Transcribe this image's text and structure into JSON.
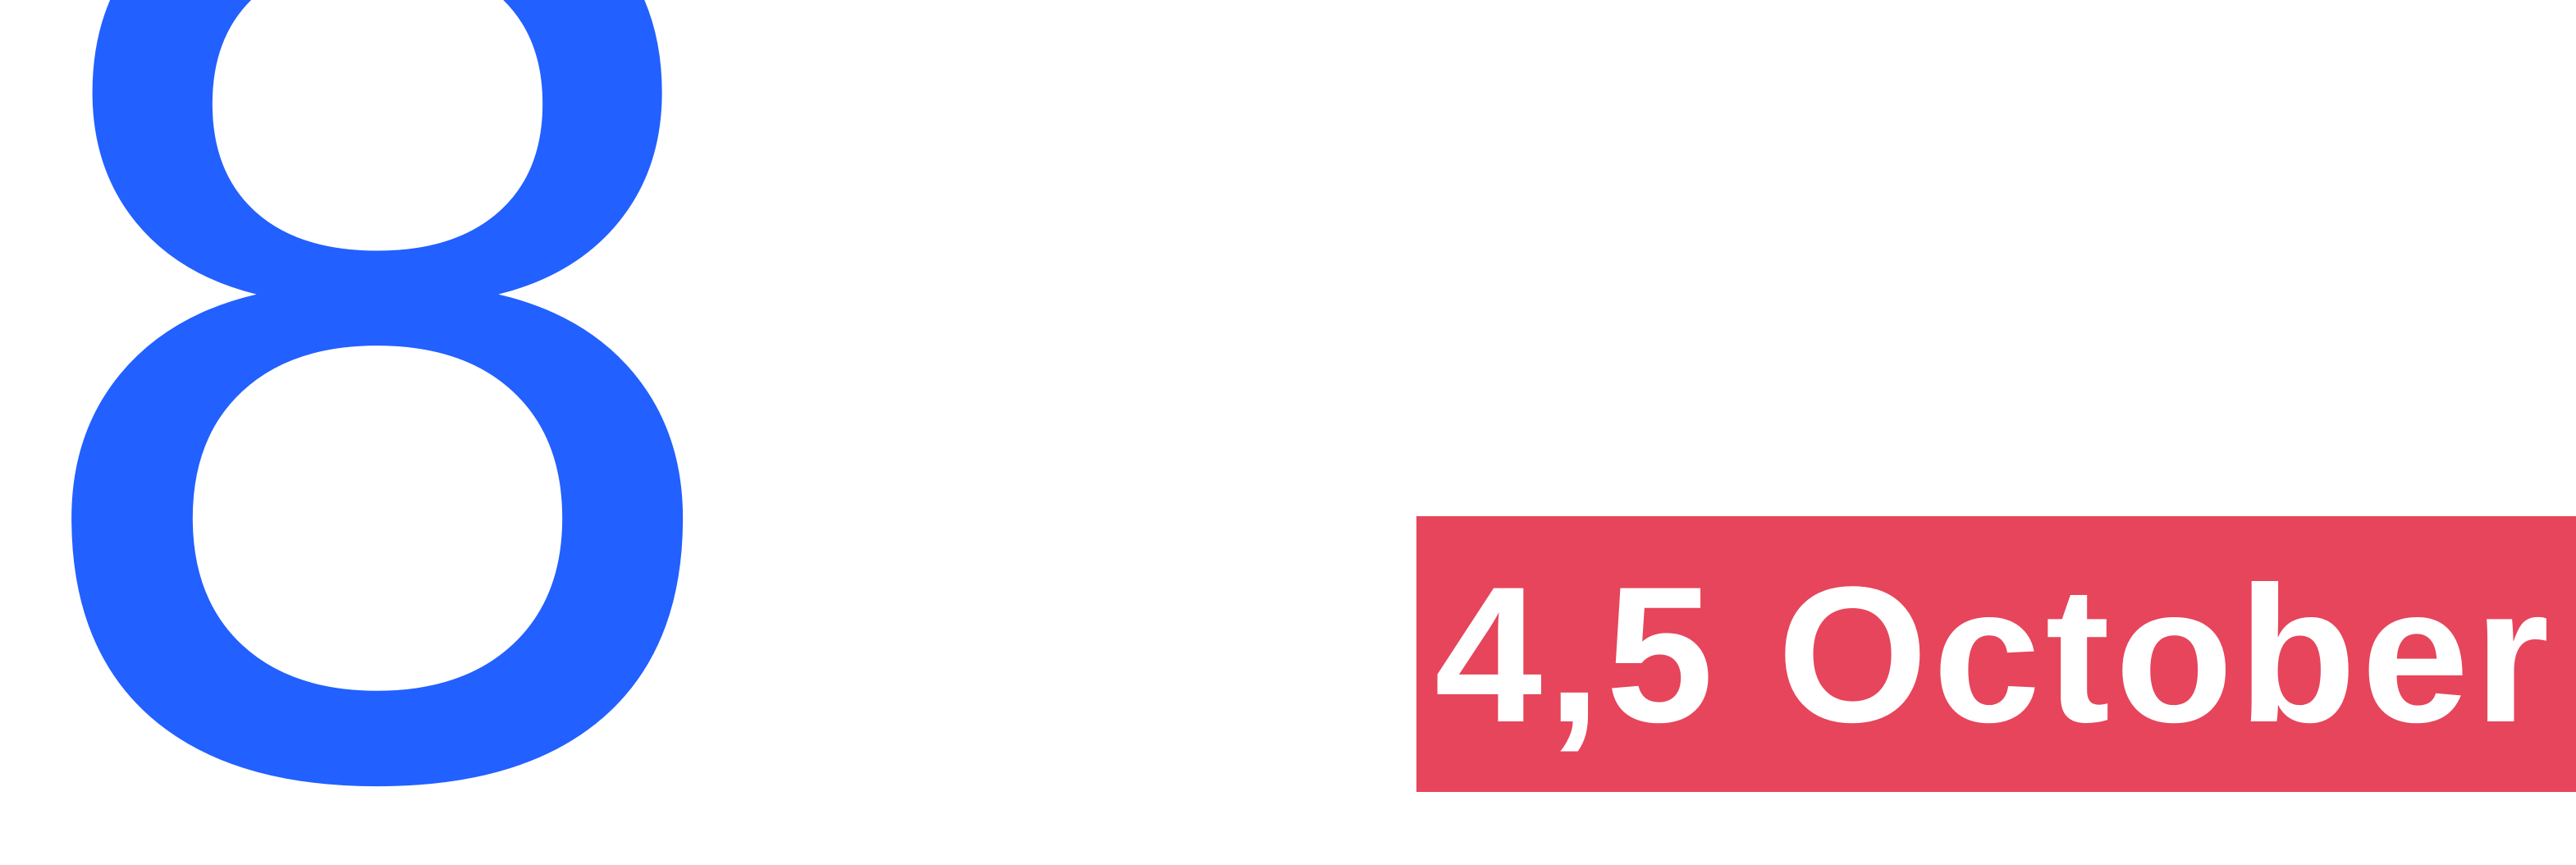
{
  "graphic": {
    "number": "8",
    "date_label": "4,5 October",
    "colors": {
      "number": "#2260FF",
      "banner_background": "#E6455B",
      "banner_text": "#FFFFFF",
      "background": "#FFFFFF"
    }
  }
}
